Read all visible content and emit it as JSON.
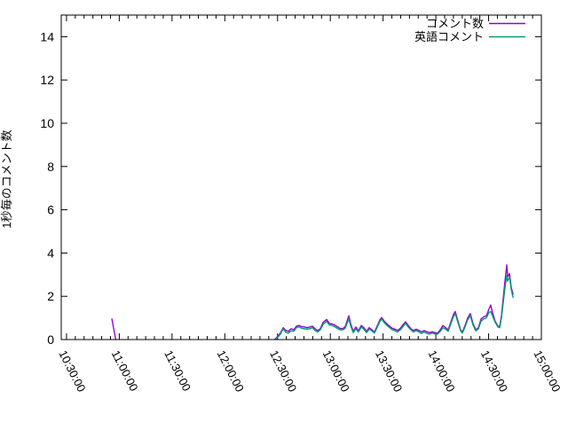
{
  "figure": {
    "background": "#ffffff",
    "axis_color": "#000000"
  },
  "chart_data": {
    "type": "line",
    "title": "",
    "xlabel": "",
    "ylabel": "1秒毎のコメント数",
    "ylim": [
      0,
      15
    ],
    "y_ticks": [
      0,
      2,
      4,
      6,
      8,
      10,
      12,
      14
    ],
    "x_range_minutes": [
      627,
      900
    ],
    "x_minor_tick_interval_minutes": 5,
    "x_tick_label_rotation_deg": 63,
    "grid": false,
    "legend_position": "top-right-inside",
    "x_major_ticks": [
      {
        "m": 630,
        "label": "10:30:00"
      },
      {
        "m": 660,
        "label": "11:00:00"
      },
      {
        "m": 690,
        "label": "11:30:00"
      },
      {
        "m": 720,
        "label": "12:00:00"
      },
      {
        "m": 750,
        "label": "12:30:00"
      },
      {
        "m": 780,
        "label": "13:00:00"
      },
      {
        "m": 810,
        "label": "13:30:00"
      },
      {
        "m": 840,
        "label": "14:00:00"
      },
      {
        "m": 870,
        "label": "14:30:00"
      },
      {
        "m": 900,
        "label": "15:00:00"
      }
    ],
    "series": [
      {
        "name": "コメント数",
        "color": "#9400d3",
        "segments": [
          [
            [
              655.8,
              0.95
            ],
            [
              658.0,
              0.0
            ]
          ],
          [
            [
              748.6,
              0.02
            ],
            [
              750.1,
              0.15
            ],
            [
              751.6,
              0.3
            ],
            [
              753.2,
              0.55
            ],
            [
              754.7,
              0.42
            ],
            [
              756.2,
              0.38
            ],
            [
              757.7,
              0.5
            ],
            [
              759.2,
              0.45
            ],
            [
              760.7,
              0.62
            ],
            [
              762.2,
              0.65
            ],
            [
              763.7,
              0.6
            ],
            [
              765.3,
              0.58
            ],
            [
              766.8,
              0.55
            ],
            [
              768.3,
              0.58
            ],
            [
              769.8,
              0.62
            ],
            [
              771.3,
              0.5
            ],
            [
              772.8,
              0.42
            ],
            [
              774.3,
              0.5
            ],
            [
              775.9,
              0.8
            ],
            [
              777.9,
              0.93
            ],
            [
              779.4,
              0.75
            ],
            [
              780.9,
              0.72
            ],
            [
              782.4,
              0.68
            ],
            [
              783.9,
              0.6
            ],
            [
              785.4,
              0.52
            ],
            [
              787.0,
              0.5
            ],
            [
              788.5,
              0.6
            ],
            [
              789.5,
              0.85
            ],
            [
              790.5,
              1.1
            ],
            [
              791.5,
              0.75
            ],
            [
              793.0,
              0.38
            ],
            [
              794.5,
              0.58
            ],
            [
              796.0,
              0.4
            ],
            [
              797.6,
              0.65
            ],
            [
              799.1,
              0.55
            ],
            [
              800.6,
              0.38
            ],
            [
              802.1,
              0.55
            ],
            [
              803.6,
              0.45
            ],
            [
              805.1,
              0.35
            ],
            [
              806.6,
              0.62
            ],
            [
              808.2,
              0.92
            ],
            [
              809.2,
              1.02
            ],
            [
              810.7,
              0.85
            ],
            [
              812.2,
              0.72
            ],
            [
              813.7,
              0.62
            ],
            [
              815.2,
              0.52
            ],
            [
              816.7,
              0.48
            ],
            [
              818.2,
              0.42
            ],
            [
              819.8,
              0.52
            ],
            [
              821.3,
              0.68
            ],
            [
              822.8,
              0.82
            ],
            [
              824.3,
              0.65
            ],
            [
              825.8,
              0.5
            ],
            [
              827.3,
              0.42
            ],
            [
              828.8,
              0.48
            ],
            [
              830.4,
              0.42
            ],
            [
              831.9,
              0.36
            ],
            [
              833.4,
              0.42
            ],
            [
              834.9,
              0.36
            ],
            [
              836.4,
              0.32
            ],
            [
              837.9,
              0.36
            ],
            [
              839.4,
              0.32
            ],
            [
              841.0,
              0.3
            ],
            [
              842.5,
              0.45
            ],
            [
              844.0,
              0.65
            ],
            [
              845.5,
              0.55
            ],
            [
              847.0,
              0.45
            ],
            [
              848.5,
              0.8
            ],
            [
              850.0,
              1.15
            ],
            [
              851.0,
              1.3
            ],
            [
              852.6,
              0.85
            ],
            [
              854.1,
              0.45
            ],
            [
              855.1,
              0.35
            ],
            [
              856.6,
              0.65
            ],
            [
              858.1,
              1.0
            ],
            [
              859.6,
              1.2
            ],
            [
              861.1,
              0.75
            ],
            [
              862.7,
              0.45
            ],
            [
              864.2,
              0.55
            ],
            [
              865.7,
              0.95
            ],
            [
              867.2,
              1.05
            ],
            [
              868.7,
              1.1
            ],
            [
              870.2,
              1.4
            ],
            [
              871.2,
              1.6
            ],
            [
              872.2,
              1.25
            ],
            [
              873.7,
              0.85
            ],
            [
              875.3,
              0.62
            ],
            [
              876.3,
              0.6
            ],
            [
              877.3,
              1.1
            ],
            [
              878.3,
              1.9
            ],
            [
              879.3,
              2.7
            ],
            [
              880.3,
              3.45
            ],
            [
              880.8,
              2.9
            ],
            [
              881.9,
              3.05
            ],
            [
              882.9,
              2.4
            ],
            [
              883.9,
              2.1
            ]
          ]
        ]
      },
      {
        "name": "英語コメント",
        "color": "#009e73",
        "segments": [
          [
            [
              748.6,
              0.0
            ],
            [
              750.1,
              0.1
            ],
            [
              751.6,
              0.25
            ],
            [
              753.2,
              0.5
            ],
            [
              754.7,
              0.33
            ],
            [
              756.2,
              0.3
            ],
            [
              757.7,
              0.4
            ],
            [
              759.2,
              0.38
            ],
            [
              760.7,
              0.55
            ],
            [
              762.2,
              0.58
            ],
            [
              763.7,
              0.52
            ],
            [
              765.3,
              0.5
            ],
            [
              766.8,
              0.48
            ],
            [
              768.3,
              0.5
            ],
            [
              769.8,
              0.55
            ],
            [
              771.3,
              0.42
            ],
            [
              772.8,
              0.35
            ],
            [
              774.3,
              0.45
            ],
            [
              775.9,
              0.7
            ],
            [
              777.9,
              0.85
            ],
            [
              779.4,
              0.68
            ],
            [
              780.9,
              0.65
            ],
            [
              782.4,
              0.6
            ],
            [
              783.9,
              0.52
            ],
            [
              785.4,
              0.45
            ],
            [
              787.0,
              0.45
            ],
            [
              788.5,
              0.52
            ],
            [
              789.5,
              0.75
            ],
            [
              790.5,
              0.95
            ],
            [
              791.5,
              0.65
            ],
            [
              793.0,
              0.32
            ],
            [
              794.5,
              0.5
            ],
            [
              796.0,
              0.35
            ],
            [
              797.6,
              0.58
            ],
            [
              799.1,
              0.48
            ],
            [
              800.6,
              0.32
            ],
            [
              802.1,
              0.48
            ],
            [
              803.6,
              0.4
            ],
            [
              805.1,
              0.3
            ],
            [
              806.6,
              0.55
            ],
            [
              808.2,
              0.85
            ],
            [
              809.2,
              0.95
            ],
            [
              810.7,
              0.78
            ],
            [
              812.2,
              0.65
            ],
            [
              813.7,
              0.55
            ],
            [
              815.2,
              0.45
            ],
            [
              816.7,
              0.42
            ],
            [
              818.2,
              0.35
            ],
            [
              819.8,
              0.45
            ],
            [
              821.3,
              0.6
            ],
            [
              822.8,
              0.75
            ],
            [
              824.3,
              0.58
            ],
            [
              825.8,
              0.45
            ],
            [
              827.3,
              0.35
            ],
            [
              828.8,
              0.42
            ],
            [
              830.4,
              0.35
            ],
            [
              831.9,
              0.28
            ],
            [
              833.4,
              0.35
            ],
            [
              834.9,
              0.28
            ],
            [
              836.4,
              0.25
            ],
            [
              837.9,
              0.3
            ],
            [
              839.4,
              0.26
            ],
            [
              841.0,
              0.25
            ],
            [
              842.5,
              0.38
            ],
            [
              844.0,
              0.55
            ],
            [
              845.5,
              0.48
            ],
            [
              847.0,
              0.38
            ],
            [
              848.5,
              0.72
            ],
            [
              850.0,
              1.05
            ],
            [
              851.0,
              1.2
            ],
            [
              852.6,
              0.78
            ],
            [
              854.1,
              0.4
            ],
            [
              855.1,
              0.3
            ],
            [
              856.6,
              0.58
            ],
            [
              858.1,
              0.92
            ],
            [
              859.6,
              1.1
            ],
            [
              861.1,
              0.68
            ],
            [
              862.7,
              0.4
            ],
            [
              864.2,
              0.5
            ],
            [
              865.7,
              0.85
            ],
            [
              867.2,
              0.95
            ],
            [
              868.7,
              1.0
            ],
            [
              870.2,
              1.25
            ],
            [
              871.2,
              1.3
            ],
            [
              872.2,
              1.1
            ],
            [
              873.7,
              0.8
            ],
            [
              875.3,
              0.58
            ],
            [
              876.3,
              0.55
            ],
            [
              877.3,
              1.0
            ],
            [
              878.3,
              1.7
            ],
            [
              879.3,
              2.4
            ],
            [
              880.3,
              2.95
            ],
            [
              880.8,
              2.7
            ],
            [
              881.9,
              2.9
            ],
            [
              882.9,
              2.3
            ],
            [
              883.9,
              1.95
            ]
          ]
        ]
      }
    ]
  }
}
